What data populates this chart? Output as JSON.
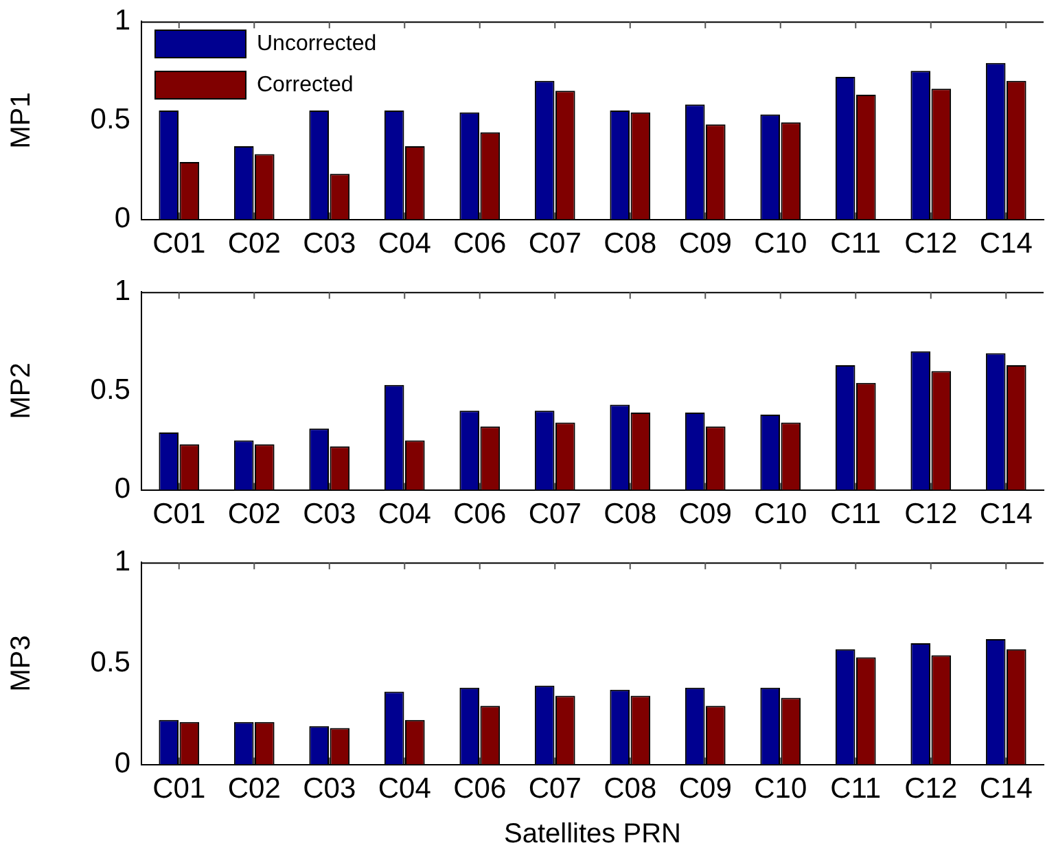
{
  "chart_data": [
    {
      "type": "bar",
      "ylabel": "MP1",
      "categories": [
        "C01",
        "C02",
        "C03",
        "C04",
        "C06",
        "C07",
        "C08",
        "C09",
        "C10",
        "C11",
        "C12",
        "C14"
      ],
      "ylim": [
        0,
        1
      ],
      "yticks": [
        0,
        0.5,
        1
      ],
      "legend": "top left",
      "series": [
        {
          "name": "Uncorrected",
          "color": "#000090",
          "values": [
            0.55,
            0.37,
            0.55,
            0.55,
            0.54,
            0.7,
            0.55,
            0.58,
            0.53,
            0.72,
            0.75,
            0.79
          ]
        },
        {
          "name": "Corrected",
          "color": "#800000",
          "values": [
            0.29,
            0.33,
            0.23,
            0.37,
            0.44,
            0.65,
            0.54,
            0.48,
            0.49,
            0.63,
            0.66,
            0.7
          ]
        }
      ]
    },
    {
      "type": "bar",
      "ylabel": "MP2",
      "categories": [
        "C01",
        "C02",
        "C03",
        "C04",
        "C06",
        "C07",
        "C08",
        "C09",
        "C10",
        "C11",
        "C12",
        "C14"
      ],
      "ylim": [
        0,
        1
      ],
      "yticks": [
        0,
        0.5,
        1
      ],
      "series": [
        {
          "color": "#000090",
          "values": [
            0.29,
            0.25,
            0.31,
            0.53,
            0.4,
            0.4,
            0.43,
            0.39,
            0.38,
            0.63,
            0.7,
            0.69
          ]
        },
        {
          "color": "#800000",
          "values": [
            0.23,
            0.23,
            0.22,
            0.25,
            0.32,
            0.34,
            0.39,
            0.32,
            0.34,
            0.54,
            0.6,
            0.63
          ]
        }
      ]
    },
    {
      "type": "bar",
      "ylabel": "MP3",
      "xlabel": "Satellites PRN",
      "categories": [
        "C01",
        "C02",
        "C03",
        "C04",
        "C06",
        "C07",
        "C08",
        "C09",
        "C10",
        "C11",
        "C12",
        "C14"
      ],
      "ylim": [
        0,
        1
      ],
      "yticks": [
        0,
        0.5,
        1
      ],
      "series": [
        {
          "color": "#000090",
          "values": [
            0.22,
            0.21,
            0.19,
            0.36,
            0.38,
            0.39,
            0.37,
            0.38,
            0.38,
            0.57,
            0.6,
            0.62
          ]
        },
        {
          "color": "#800000",
          "values": [
            0.21,
            0.21,
            0.18,
            0.22,
            0.29,
            0.34,
            0.34,
            0.29,
            0.33,
            0.53,
            0.54,
            0.57
          ]
        }
      ]
    }
  ]
}
